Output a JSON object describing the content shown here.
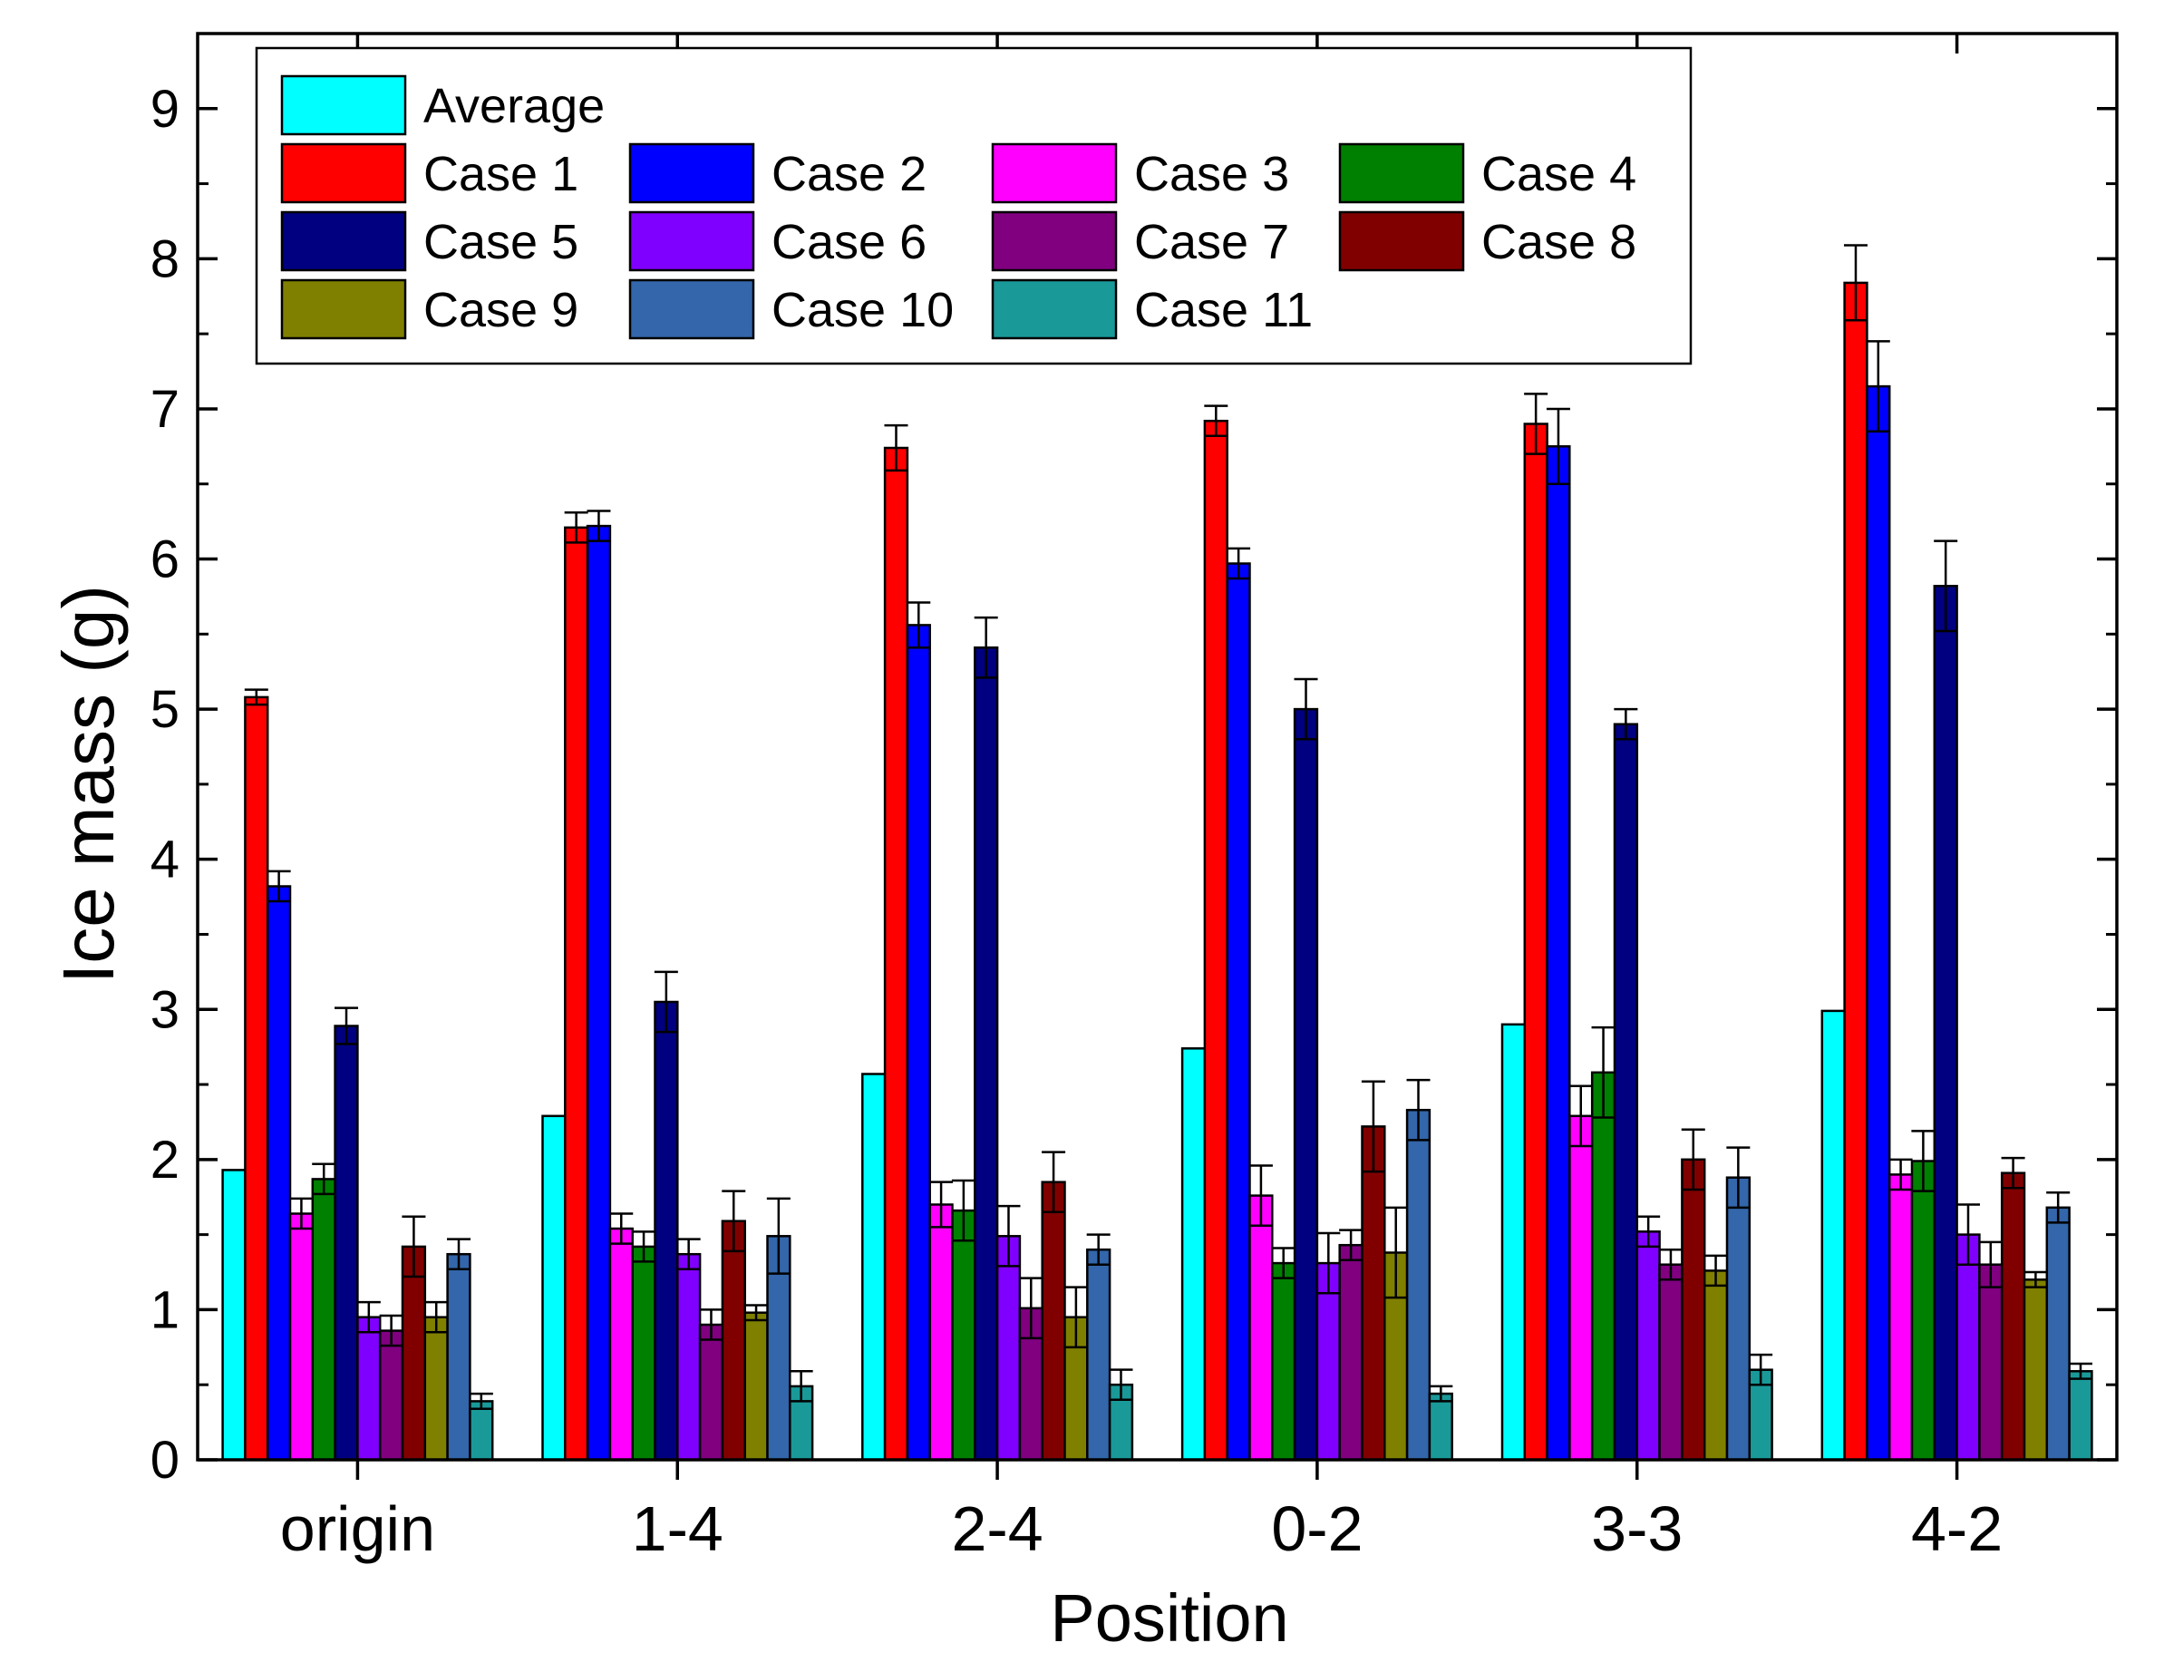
{
  "chart_data": {
    "type": "bar",
    "title": "",
    "xlabel": "Position",
    "ylabel": "Ice mass (g)",
    "ylim": [
      0,
      9.5
    ],
    "yticks": [
      "0",
      "1",
      "2",
      "3",
      "4",
      "5",
      "6",
      "7",
      "8",
      "9"
    ],
    "categories": [
      "origin",
      "1-4",
      "2-4",
      "0-2",
      "3-3",
      "4-2"
    ],
    "legend_position": "top-left",
    "series": [
      {
        "name": "Average",
        "color": "#00FFFF",
        "values": [
          1.93,
          2.29,
          2.57,
          2.74,
          2.9,
          2.99
        ],
        "errors": [
          0,
          0,
          0,
          0,
          0,
          0
        ]
      },
      {
        "name": "Case 1",
        "color": "#FF0000",
        "values": [
          5.08,
          6.21,
          6.74,
          6.92,
          6.9,
          7.84
        ],
        "errors": [
          0.05,
          0.1,
          0.15,
          0.1,
          0.2,
          0.25
        ]
      },
      {
        "name": "Case 2",
        "color": "#0000FF",
        "values": [
          3.82,
          6.22,
          5.56,
          5.97,
          6.75,
          7.15
        ],
        "errors": [
          0.1,
          0.1,
          0.15,
          0.1,
          0.25,
          0.3
        ]
      },
      {
        "name": "Case 3",
        "color": "#FF00FF",
        "values": [
          1.64,
          1.54,
          1.7,
          1.76,
          2.29,
          1.9
        ],
        "errors": [
          0.1,
          0.1,
          0.15,
          0.2,
          0.2,
          0.1
        ]
      },
      {
        "name": "Case 4",
        "color": "#008000",
        "values": [
          1.87,
          1.42,
          1.66,
          1.31,
          2.58,
          1.99
        ],
        "errors": [
          0.1,
          0.1,
          0.2,
          0.1,
          0.3,
          0.2
        ]
      },
      {
        "name": "Case 5",
        "color": "#000080",
        "values": [
          2.89,
          3.05,
          5.41,
          5.0,
          4.9,
          5.82
        ],
        "errors": [
          0.12,
          0.2,
          0.2,
          0.2,
          0.1,
          0.3
        ]
      },
      {
        "name": "Case 6",
        "color": "#8000FF",
        "values": [
          0.95,
          1.37,
          1.49,
          1.31,
          1.52,
          1.5
        ],
        "errors": [
          0.1,
          0.1,
          0.2,
          0.2,
          0.1,
          0.2
        ]
      },
      {
        "name": "Case 7",
        "color": "#800080",
        "values": [
          0.86,
          0.9,
          1.01,
          1.43,
          1.3,
          1.3
        ],
        "errors": [
          0.1,
          0.1,
          0.2,
          0.1,
          0.1,
          0.15
        ]
      },
      {
        "name": "Case 8",
        "color": "#800000",
        "values": [
          1.42,
          1.59,
          1.85,
          2.22,
          2.0,
          1.91
        ],
        "errors": [
          0.2,
          0.2,
          0.2,
          0.3,
          0.2,
          0.1
        ]
      },
      {
        "name": "Case 9",
        "color": "#808000",
        "values": [
          0.95,
          0.98,
          0.95,
          1.38,
          1.26,
          1.2
        ],
        "errors": [
          0.1,
          0.05,
          0.2,
          0.3,
          0.1,
          0.05
        ]
      },
      {
        "name": "Case 10",
        "color": "#3366AA",
        "values": [
          1.37,
          1.49,
          1.4,
          2.33,
          1.88,
          1.68
        ],
        "errors": [
          0.1,
          0.25,
          0.1,
          0.2,
          0.2,
          0.1
        ]
      },
      {
        "name": "Case 11",
        "color": "#1A9999",
        "values": [
          0.39,
          0.49,
          0.5,
          0.44,
          0.6,
          0.59
        ],
        "errors": [
          0.05,
          0.1,
          0.1,
          0.05,
          0.1,
          0.05
        ]
      }
    ]
  }
}
